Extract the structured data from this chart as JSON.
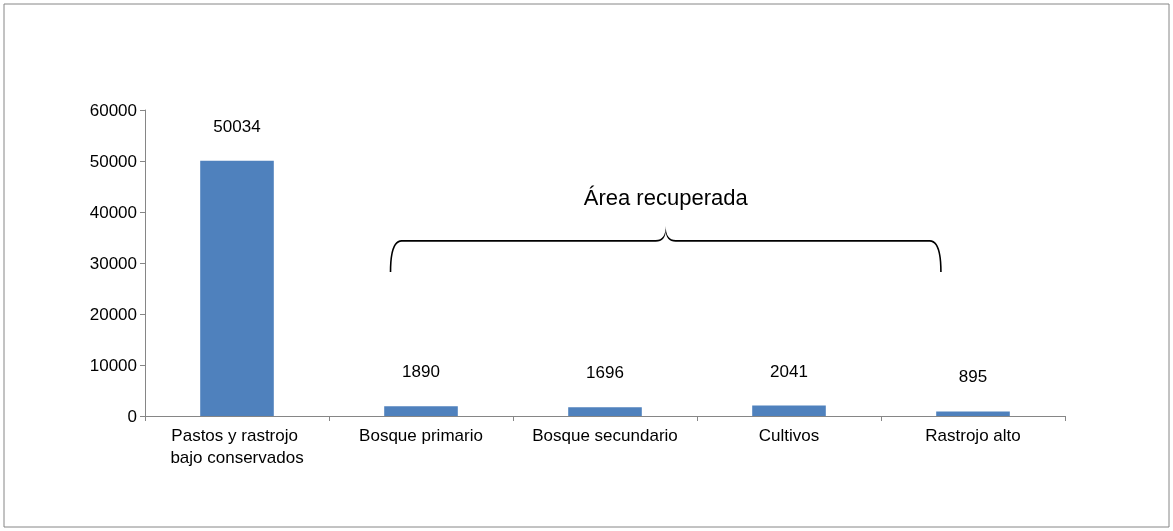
{
  "chart_data": {
    "type": "bar",
    "categories": [
      "Pastos y rastrojo bajo conservados",
      "Bosque primario",
      "Bosque secundario",
      "Cultivos",
      "Rastrojo alto"
    ],
    "values": [
      50034,
      1890,
      1696,
      2041,
      895
    ],
    "color": "#4f81bd",
    "ylim": [
      0,
      60000
    ],
    "yticks": [
      0,
      10000,
      20000,
      30000,
      40000,
      50000,
      60000
    ],
    "grid": false,
    "data_labels": true,
    "annotations": [
      "Área recuperada"
    ]
  }
}
